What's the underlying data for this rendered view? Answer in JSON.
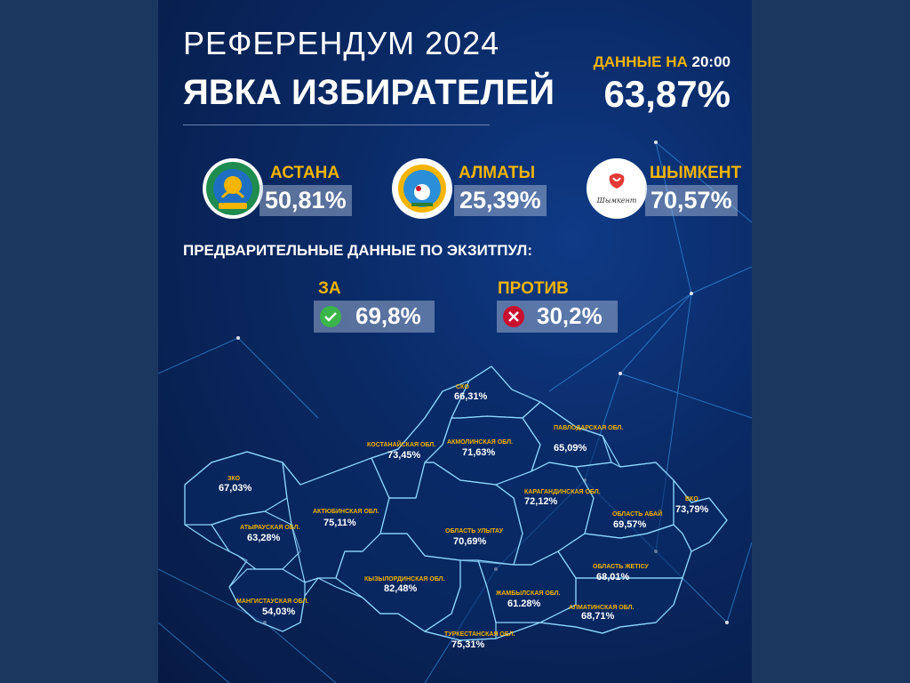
{
  "header": {
    "title_line1": "РЕФЕРЕНДУМ 2024",
    "title_line2": "ЯВКА ИЗБИРАТЕЛЕЙ",
    "data_as_of_label": "ДАННЫЕ НА",
    "data_as_of_time": "20:00",
    "total_turnout": "63,87%"
  },
  "cities": [
    {
      "name": "АСТАНА",
      "value": "50,81%",
      "emblem_text": "АСТАНА"
    },
    {
      "name": "АЛМАТЫ",
      "value": "25,39%",
      "emblem_text": "АЛМАТЫ"
    },
    {
      "name": "ШЫМКЕНТ",
      "value": "70,57%",
      "emblem_text": "Шымкент"
    }
  ],
  "exit_poll": {
    "title": "ПРЕДВАРИТЕЛЬНЫЕ ДАННЫЕ ПО ЭКЗИТПУЛ:",
    "for": {
      "label": "ЗА",
      "value": "69,8%",
      "icon": "check-icon"
    },
    "against": {
      "label": "ПРОТИВ",
      "value": "30,2%",
      "icon": "cross-icon"
    }
  },
  "regions": [
    {
      "name": "СКО",
      "value": "66,31%"
    },
    {
      "name": "КОСТАНАЙСКАЯ ОБЛ.",
      "value": "73,45%"
    },
    {
      "name": "АКМОЛИНСКАЯ ОБЛ.",
      "value": "71,63%"
    },
    {
      "name": "ПАВЛОДАРСКАЯ ОБЛ.",
      "value": "65,09%"
    },
    {
      "name": "ЗКО",
      "value": "67,03%"
    },
    {
      "name": "АКТЮБИНСКАЯ ОБЛ.",
      "value": "75,11%"
    },
    {
      "name": "КАРАГАНДИНСКАЯ ОБЛ.",
      "value": "72,12%"
    },
    {
      "name": "ВКО",
      "value": "73,79%"
    },
    {
      "name": "АТЫРАУСКАЯ ОБЛ.",
      "value": "63,28%"
    },
    {
      "name": "ОБЛАСТЬ УЛЫТАУ",
      "value": "70,69%"
    },
    {
      "name": "ОБЛАСТЬ АБАЙ",
      "value": "69,57%"
    },
    {
      "name": "КЫЗЫЛОРДИНСКАЯ ОБЛ.",
      "value": "82,48%"
    },
    {
      "name": "ОБЛАСТЬ ЖЕТІСУ",
      "value": "68,01%"
    },
    {
      "name": "МАНГИСТАУСКАЯ ОБЛ.",
      "value": "54,03%"
    },
    {
      "name": "ЖАМБЫЛСКАЯ ОБЛ.",
      "value": "61.28%"
    },
    {
      "name": "АЛМАТИНСКАЯ ОБЛ.",
      "value": "68,71%"
    },
    {
      "name": "ТУРКЕСТАНСКАЯ ОБЛ.",
      "value": "75,31%"
    }
  ],
  "colors": {
    "accent_yellow": "#f4b400",
    "background_navy": "#0a2a66",
    "check_green": "#3ab54a",
    "cross_red": "#c8102e",
    "map_outline": "#8fd8ff"
  }
}
